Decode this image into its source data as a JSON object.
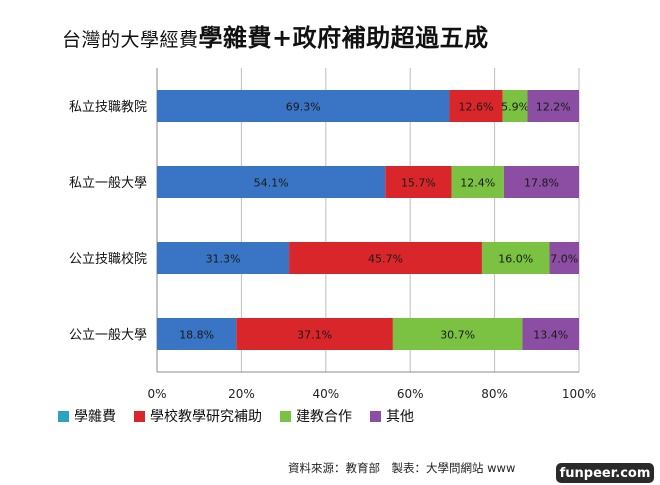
{
  "title": {
    "part1": "台灣的大學經費",
    "part2": "學雜費+政府補助超過五成"
  },
  "colors": {
    "tuition": "#3a74c4",
    "research": "#d9262a",
    "cooperation": "#7cc242",
    "other": "#8b4ea3",
    "legend_tuition_swatch": "#2aa3c0",
    "grid": "#bfbfbf"
  },
  "chart_data": {
    "type": "bar",
    "orientation": "horizontal",
    "stacked": true,
    "categories": [
      "私立技職教院",
      "私立一般大學",
      "公立技職校院",
      "公立一般大學"
    ],
    "series": [
      {
        "name": "學雜費",
        "values": [
          69.3,
          54.1,
          31.3,
          18.8
        ],
        "labels": [
          "69.3%",
          "54.1%",
          "31.3%",
          "18.8%"
        ]
      },
      {
        "name": "學校教學研究補助",
        "values": [
          12.6,
          15.7,
          45.7,
          37.1
        ],
        "labels": [
          "12.6%",
          "15.7%",
          "45.7%",
          "37.1%"
        ]
      },
      {
        "name": "建教合作",
        "values": [
          5.9,
          12.4,
          16.0,
          30.7
        ],
        "labels": [
          "5.9%",
          "12.4%",
          "16.0%",
          "30.7%"
        ]
      },
      {
        "name": "其他",
        "values": [
          12.2,
          17.8,
          7.0,
          13.4
        ],
        "labels": [
          "12.2%",
          "17.8%",
          "7.0%",
          "13.4%"
        ]
      }
    ],
    "xlim": [
      0,
      100
    ],
    "xticks": [
      "0%",
      "20%",
      "40%",
      "60%",
      "80%",
      "100%"
    ],
    "xtick_values": [
      0,
      20,
      40,
      60,
      80,
      100
    ],
    "grid": true,
    "legend_position": "bottom"
  },
  "legend": [
    {
      "label": "學雜費"
    },
    {
      "label": "學校教學研究補助"
    },
    {
      "label": "建教合作"
    },
    {
      "label": "其他"
    }
  ],
  "source_text": "資料來源：教育部　製表：大學問網站 www",
  "badge_text": "funpeer.com"
}
